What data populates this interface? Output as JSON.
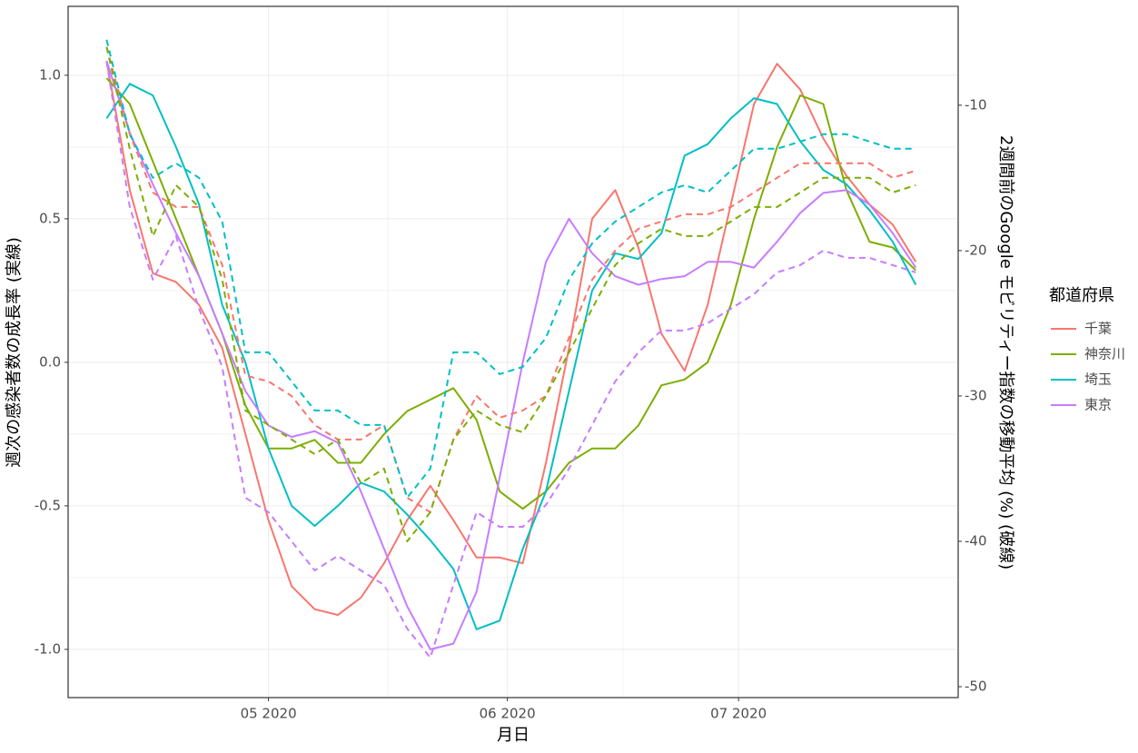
{
  "chart_data": {
    "type": "line",
    "x_label": "月日",
    "y_label": "週次の感染者数の成長率 (実線)",
    "y2_label": "2週間前のGoogle モビリティー指数の移動平均 (%) (破線)",
    "legend_title": "都道府県",
    "legend_position": "right",
    "grid": true,
    "xlim": [
      -26,
      89.5
    ],
    "xticks": [
      {
        "value": 0,
        "label": "05 2020"
      },
      {
        "value": 31,
        "label": "06 2020"
      },
      {
        "value": 61,
        "label": "07 2020"
      }
    ],
    "ylim": [
      -1.168,
      1.24
    ],
    "yticks": [
      {
        "value": -1,
        "label": "-1.0"
      },
      -0.5,
      {
        "value": 0,
        "label": "0.0"
      },
      0.5,
      {
        "value": 1,
        "label": "1.0"
      }
    ],
    "y2lim": [
      -50.75,
      -3.2
    ],
    "y2ticks": [
      -50,
      -40,
      -30,
      -20,
      -10
    ],
    "x": [
      -21,
      -18,
      -15,
      -12,
      -9,
      -6,
      -3,
      0,
      3,
      6,
      9,
      12,
      15,
      18,
      21,
      24,
      27,
      30,
      33,
      36,
      39,
      42,
      45,
      48,
      51,
      54,
      57,
      60,
      63,
      66,
      69,
      72,
      75,
      78,
      81,
      84
    ],
    "series": [
      {
        "name": "千葉",
        "color": "#F8766D",
        "values": [
          1.05,
          0.6,
          0.31,
          0.28,
          0.2,
          0.05,
          -0.25,
          -0.55,
          -0.78,
          -0.86,
          -0.88,
          -0.82,
          -0.7,
          -0.55,
          -0.43,
          -0.55,
          -0.68,
          -0.68,
          -0.7,
          -0.35,
          0.05,
          0.5,
          0.6,
          0.4,
          0.1,
          -0.03,
          0.2,
          0.55,
          0.9,
          1.04,
          0.95,
          0.78,
          0.65,
          0.55,
          0.48,
          0.35
        ]
      },
      {
        "name": "神奈川",
        "color": "#7CAE00",
        "values": [
          0.99,
          0.9,
          0.7,
          0.5,
          0.3,
          0.1,
          -0.15,
          -0.3,
          -0.3,
          -0.27,
          -0.35,
          -0.35,
          -0.25,
          -0.17,
          -0.13,
          -0.09,
          -0.2,
          -0.45,
          -0.51,
          -0.45,
          -0.35,
          -0.3,
          -0.3,
          -0.22,
          -0.08,
          -0.06,
          0.0,
          0.2,
          0.5,
          0.75,
          0.93,
          0.9,
          0.6,
          0.42,
          0.4,
          0.32
        ]
      },
      {
        "name": "埼玉",
        "color": "#00BFC4",
        "values": [
          0.85,
          0.97,
          0.93,
          0.75,
          0.55,
          0.2,
          0.0,
          -0.3,
          -0.5,
          -0.57,
          -0.5,
          -0.42,
          -0.45,
          -0.53,
          -0.62,
          -0.72,
          -0.93,
          -0.9,
          -0.65,
          -0.45,
          -0.1,
          0.25,
          0.38,
          0.36,
          0.45,
          0.72,
          0.76,
          0.85,
          0.92,
          0.9,
          0.77,
          0.67,
          0.62,
          0.53,
          0.42,
          0.27
        ]
      },
      {
        "name": "東京",
        "color": "#C77CFF",
        "values": [
          1.05,
          0.8,
          0.62,
          0.45,
          0.3,
          0.1,
          -0.1,
          -0.22,
          -0.26,
          -0.24,
          -0.28,
          -0.45,
          -0.65,
          -0.85,
          -1.0,
          -0.98,
          -0.8,
          -0.4,
          0.0,
          0.35,
          0.5,
          0.38,
          0.3,
          0.27,
          0.29,
          0.3,
          0.35,
          0.35,
          0.33,
          0.42,
          0.52,
          0.59,
          0.6,
          0.55,
          0.45,
          0.33
        ]
      },
      {
        "color": "#F8766D",
        "axis": "y2",
        "dashed": true,
        "values": [
          -6,
          -12,
          -16,
          -17,
          -17,
          -21,
          -28.6,
          -29,
          -30,
          -32,
          -33,
          -33,
          -32,
          -37,
          -38,
          -33,
          -30,
          -31.5,
          -31,
          -30,
          -26,
          -22,
          -20,
          -18.5,
          -18,
          -17.5,
          -17.5,
          -17,
          -16,
          -15,
          -14,
          -14,
          -14,
          -14,
          -15,
          -14.5
        ]
      },
      {
        "color": "#7CAE00",
        "axis": "y2",
        "dashed": true,
        "values": [
          -6,
          -13,
          -19,
          -15.5,
          -17,
          -22,
          -31,
          -32,
          -33,
          -34,
          -33,
          -36,
          -35,
          -40,
          -38,
          -33,
          -31,
          -32,
          -32.5,
          -30,
          -27,
          -24,
          -21,
          -19.5,
          -18.5,
          -19,
          -19,
          -18,
          -17,
          -17,
          -16,
          -15,
          -15,
          -15,
          -16,
          -15.5
        ]
      },
      {
        "color": "#00BFC4",
        "axis": "y2",
        "dashed": true,
        "values": [
          -5.5,
          -12,
          -15,
          -14,
          -15,
          -18,
          -27,
          -27,
          -29,
          -31,
          -31,
          -32,
          -32,
          -37,
          -35,
          -27,
          -27,
          -28.5,
          -28,
          -26,
          -22,
          -19.5,
          -18,
          -17,
          -16,
          -15.5,
          -16,
          -14.5,
          -13,
          -13,
          -12.5,
          -12,
          -12,
          -12.5,
          -13,
          -13
        ]
      },
      {
        "color": "#C77CFF",
        "axis": "y2",
        "dashed": true,
        "values": [
          -7,
          -17,
          -22,
          -19,
          -24,
          -28,
          -37,
          -38,
          -40,
          -42,
          -41,
          -42,
          -43,
          -46,
          -48,
          -43,
          -38,
          -39,
          -39,
          -37.5,
          -35,
          -32,
          -29,
          -27,
          -25.5,
          -25.5,
          -25,
          -24,
          -23,
          -21.5,
          -21,
          -20,
          -20.5,
          -20.5,
          -21,
          -21.5
        ]
      }
    ]
  }
}
